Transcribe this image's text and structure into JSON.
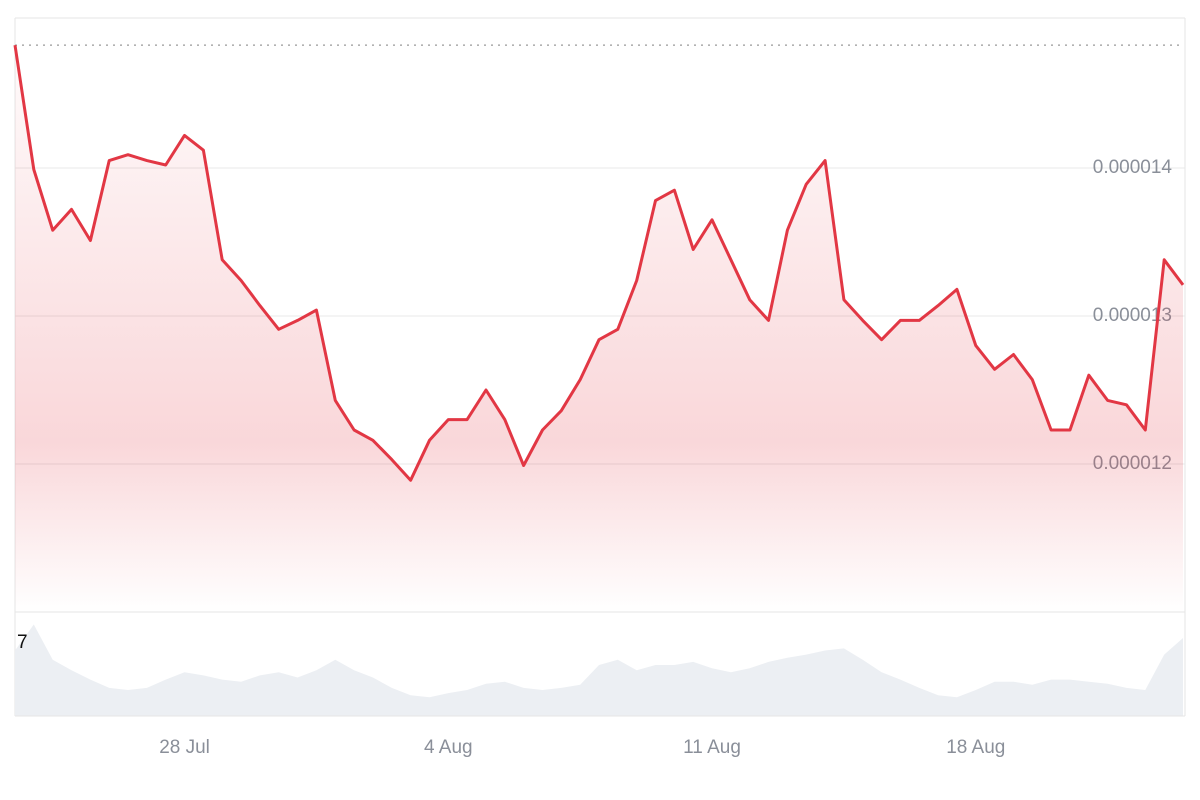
{
  "chart_data": [
    {
      "type": "line",
      "color": "#e23744",
      "categories": [
        null,
        null,
        null,
        null,
        null,
        null,
        null,
        null,
        null,
        "28 Jul",
        null,
        null,
        null,
        null,
        null,
        null,
        null,
        null,
        null,
        null,
        null,
        null,
        null,
        "4 Aug",
        null,
        null,
        null,
        null,
        null,
        null,
        null,
        null,
        null,
        null,
        null,
        null,
        null,
        "11 Aug",
        null,
        null,
        null,
        null,
        null,
        null,
        null,
        null,
        null,
        null,
        null,
        null,
        null,
        "18 Aug",
        null,
        null,
        null,
        null,
        null,
        null,
        null,
        null,
        null,
        null,
        null
      ],
      "values": [
        1.483e-05,
        1.399e-05,
        1.358e-05,
        1.372e-05,
        1.351e-05,
        1.405e-05,
        1.409e-05,
        1.405e-05,
        1.402e-05,
        1.422e-05,
        1.412e-05,
        1.338e-05,
        1.324e-05,
        1.307e-05,
        1.291e-05,
        1.297e-05,
        1.304e-05,
        1.243e-05,
        1.223e-05,
        1.216e-05,
        1.203e-05,
        1.189e-05,
        1.216e-05,
        1.23e-05,
        1.23e-05,
        1.25e-05,
        1.23e-05,
        1.199e-05,
        1.223e-05,
        1.236e-05,
        1.257e-05,
        1.284e-05,
        1.291e-05,
        1.324e-05,
        1.378e-05,
        1.385e-05,
        1.345e-05,
        1.365e-05,
        1.338e-05,
        1.311e-05,
        1.297e-05,
        1.358e-05,
        1.389e-05,
        1.405e-05,
        1.311e-05,
        1.297e-05,
        1.284e-05,
        1.297e-05,
        1.297e-05,
        1.307e-05,
        1.318e-05,
        1.28e-05,
        1.264e-05,
        1.274e-05,
        1.257e-05,
        1.223e-05,
        1.223e-05,
        1.26e-05,
        1.243e-05,
        1.24e-05,
        1.223e-05,
        1.338e-05,
        1.321e-05
      ],
      "ylim": [
        1.1e-05,
        1.5e-05
      ],
      "yticks": [
        1.2e-05,
        1.3e-05,
        1.4e-05
      ],
      "grid": true
    },
    {
      "type": "area",
      "color": "#eceff3",
      "values": [
        6.3,
        8.8,
        5.4,
        4.4,
        3.5,
        2.7,
        2.5,
        2.7,
        3.5,
        4.2,
        3.9,
        3.5,
        3.3,
        3.9,
        4.2,
        3.7,
        4.4,
        5.4,
        4.4,
        3.7,
        2.7,
        2.0,
        1.8,
        2.2,
        2.5,
        3.1,
        3.3,
        2.7,
        2.5,
        2.7,
        3.0,
        4.9,
        5.4,
        4.4,
        4.9,
        4.9,
        5.2,
        4.6,
        4.2,
        4.6,
        5.2,
        5.6,
        5.9,
        6.3,
        6.5,
        5.4,
        4.2,
        3.5,
        2.7,
        2.0,
        1.8,
        2.5,
        3.3,
        3.3,
        3.0,
        3.5,
        3.5,
        3.3,
        3.1,
        2.7,
        2.5,
        5.9,
        7.5
      ],
      "ylim": [
        0,
        10
      ],
      "yticks": [
        7
      ]
    }
  ]
}
